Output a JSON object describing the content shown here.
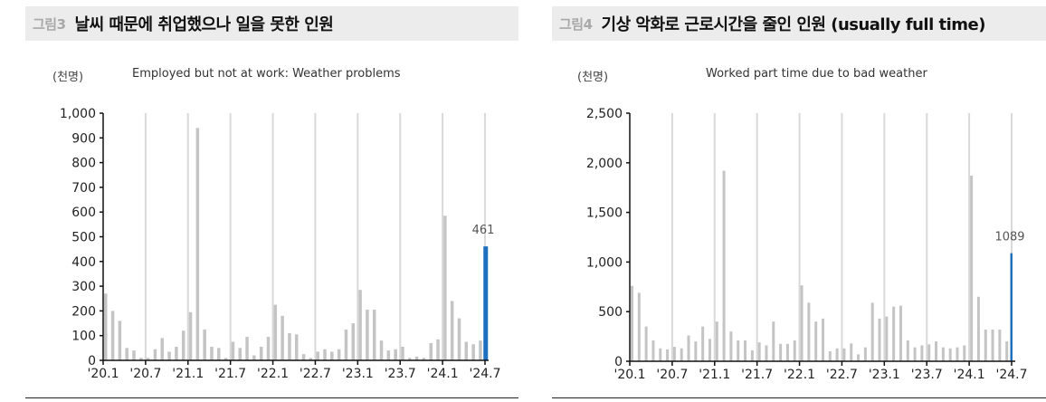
{
  "left": {
    "fig_no": "그림3",
    "title": "날씨 때문에 취업했으나 일을 못한 인원",
    "unit": "(천명)",
    "subtitle": "Employed but not at work: Weather problems"
  },
  "right": {
    "fig_no": "그림4",
    "title": "기상 악화로 근로시간을 줄인 인원 (usually full time)",
    "unit": "(천명)",
    "subtitle": "Worked part time due to bad weather"
  },
  "colors": {
    "bar": "#c4c4c4",
    "highlight": "#1f6fbf",
    "gridline": "#d9d9d9",
    "axis": "#111111",
    "title_bg": "#ececec"
  },
  "chart_data": [
    {
      "type": "bar",
      "title": "Employed but not at work: Weather problems",
      "ylabel": "(천명)",
      "xlabel": "",
      "ylim": [
        0,
        1000
      ],
      "yticks": [
        0,
        100,
        200,
        300,
        400,
        500,
        600,
        700,
        800,
        900,
        1000
      ],
      "ytick_labels": [
        "0",
        "100",
        "200",
        "300",
        "400",
        "500",
        "600",
        "700",
        "800",
        "900",
        "1,000"
      ],
      "xtick_labels": [
        "'20.1",
        "'20.7",
        "'21.1",
        "'21.7",
        "'22.1",
        "'22.7",
        "'23.1",
        "'23.7",
        "'24.1",
        "'24.7"
      ],
      "vertical_gridlines": "every 6 months",
      "categories": [
        "'20.1",
        "'20.2",
        "'20.3",
        "'20.4",
        "'20.5",
        "'20.6",
        "'20.7",
        "'20.8",
        "'20.9",
        "'20.10",
        "'20.11",
        "'20.12",
        "'21.1",
        "'21.2",
        "'21.3",
        "'21.4",
        "'21.5",
        "'21.6",
        "'21.7",
        "'21.8",
        "'21.9",
        "'21.10",
        "'21.11",
        "'21.12",
        "'22.1",
        "'22.2",
        "'22.3",
        "'22.4",
        "'22.5",
        "'22.6",
        "'22.7",
        "'22.8",
        "'22.9",
        "'22.10",
        "'22.11",
        "'22.12",
        "'23.1",
        "'23.2",
        "'23.3",
        "'23.4",
        "'23.5",
        "'23.6",
        "'23.7",
        "'23.8",
        "'23.9",
        "'23.10",
        "'23.11",
        "'23.12",
        "'24.1",
        "'24.2",
        "'24.3",
        "'24.4",
        "'24.5",
        "'24.6",
        "'24.7"
      ],
      "values": [
        270,
        200,
        160,
        50,
        40,
        10,
        10,
        45,
        90,
        35,
        55,
        120,
        195,
        940,
        125,
        55,
        50,
        10,
        75,
        50,
        95,
        20,
        55,
        95,
        225,
        180,
        110,
        105,
        25,
        10,
        35,
        45,
        35,
        45,
        125,
        150,
        285,
        205,
        205,
        80,
        40,
        45,
        55,
        10,
        15,
        10,
        70,
        85,
        585,
        240,
        170,
        75,
        65,
        80,
        461
      ],
      "annotations": [
        {
          "category": "'24.7",
          "text": "461"
        }
      ],
      "highlight_last": true
    },
    {
      "type": "bar",
      "title": "Worked part time due to bad weather",
      "ylabel": "(천명)",
      "xlabel": "",
      "ylim": [
        0,
        2500
      ],
      "yticks": [
        0,
        500,
        1000,
        1500,
        2000,
        2500
      ],
      "ytick_labels": [
        "0",
        "500",
        "1,000",
        "1,500",
        "2,000",
        "2,500"
      ],
      "xtick_labels": [
        "'20.1",
        "'20.7",
        "'21.1",
        "'21.7",
        "'22.1",
        "'22.7",
        "'23.1",
        "'23.7",
        "'24.1",
        "'24.7"
      ],
      "vertical_gridlines": "every 6 months",
      "categories": [
        "'20.1",
        "'20.2",
        "'20.3",
        "'20.4",
        "'20.5",
        "'20.6",
        "'20.7",
        "'20.8",
        "'20.9",
        "'20.10",
        "'20.11",
        "'20.12",
        "'21.1",
        "'21.2",
        "'21.3",
        "'21.4",
        "'21.5",
        "'21.6",
        "'21.7",
        "'21.8",
        "'21.9",
        "'21.10",
        "'21.11",
        "'21.12",
        "'22.1",
        "'22.2",
        "'22.3",
        "'22.4",
        "'22.5",
        "'22.6",
        "'22.7",
        "'22.8",
        "'22.9",
        "'22.10",
        "'22.11",
        "'22.12",
        "'23.1",
        "'23.2",
        "'23.3",
        "'23.4",
        "'23.5",
        "'23.6",
        "'23.7",
        "'23.8",
        "'23.9",
        "'23.10",
        "'23.11",
        "'23.12",
        "'24.1",
        "'24.2",
        "'24.3",
        "'24.4",
        "'24.5",
        "'24.6",
        "'24.7"
      ],
      "values": [
        760,
        690,
        350,
        210,
        130,
        120,
        145,
        130,
        260,
        200,
        350,
        225,
        400,
        1920,
        300,
        210,
        210,
        110,
        190,
        160,
        400,
        175,
        175,
        210,
        765,
        590,
        400,
        430,
        100,
        130,
        130,
        180,
        70,
        140,
        590,
        430,
        450,
        550,
        560,
        210,
        140,
        160,
        170,
        200,
        140,
        130,
        140,
        160,
        1870,
        650,
        320,
        320,
        320,
        200,
        1089
      ],
      "annotations": [
        {
          "category": "'24.7",
          "text": "1089"
        }
      ],
      "highlight_last": true
    }
  ]
}
